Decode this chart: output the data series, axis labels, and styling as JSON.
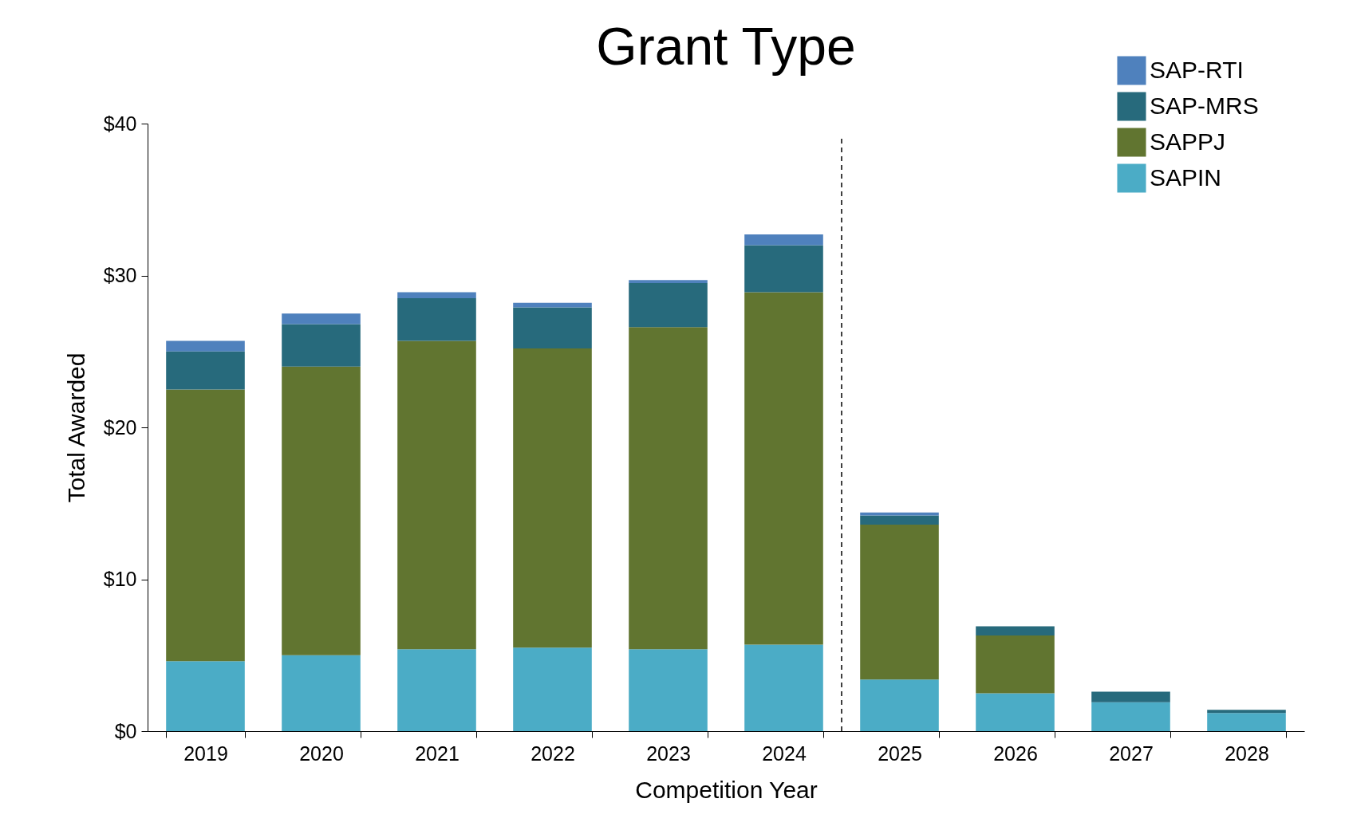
{
  "chart_data": {
    "type": "bar",
    "title": "Grant Type",
    "xlabel": "Competition Year",
    "ylabel": "Total Awarded",
    "categories": [
      "2019",
      "2020",
      "2021",
      "2022",
      "2023",
      "2024",
      "2025",
      "2026",
      "2027",
      "2028"
    ],
    "stacked": true,
    "series": [
      {
        "name": "SAPIN",
        "color": "#4bacc6",
        "values": [
          4.6,
          5.0,
          5.4,
          5.5,
          5.4,
          5.7,
          3.4,
          2.5,
          1.9,
          1.2
        ]
      },
      {
        "name": "SAPPJ",
        "color": "#617530",
        "values": [
          17.9,
          19.0,
          20.3,
          19.7,
          21.2,
          23.2,
          10.2,
          3.8,
          0,
          0
        ]
      },
      {
        "name": "SAP-MRS",
        "color": "#276a7c",
        "values": [
          2.5,
          2.8,
          2.8,
          2.7,
          2.9,
          3.1,
          0.6,
          0.6,
          0.7,
          0.2
        ]
      },
      {
        "name": "SAP-RTI",
        "color": "#4f81bd",
        "values": [
          0.7,
          0.7,
          0.4,
          0.3,
          0.2,
          0.7,
          0.2,
          0,
          0,
          0
        ]
      }
    ],
    "ylim": [
      0,
      40
    ],
    "yticks": [
      {
        "value": 0,
        "label": "$0"
      },
      {
        "value": 10,
        "label": "$10"
      },
      {
        "value": 20,
        "label": "$20"
      },
      {
        "value": 30,
        "label": "$30"
      },
      {
        "value": 40,
        "label": "$40"
      }
    ],
    "grid": false,
    "legend": "top right"
  }
}
